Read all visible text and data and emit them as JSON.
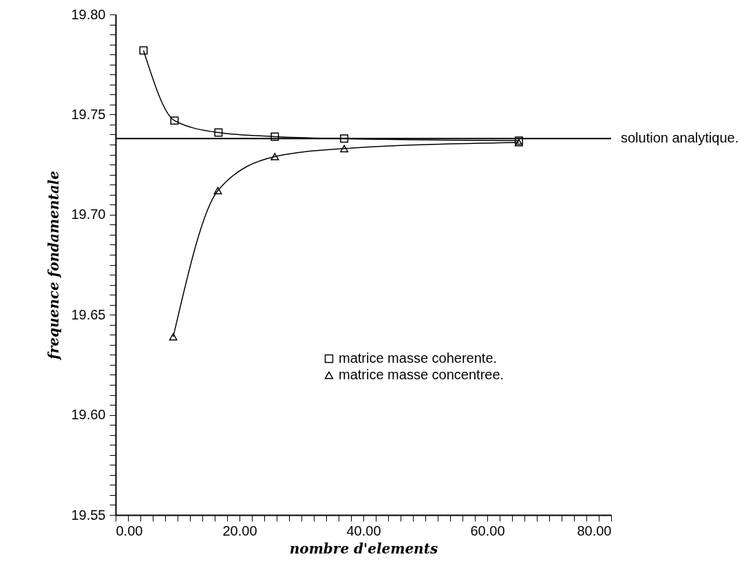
{
  "chart_data": {
    "type": "line",
    "xlabel": "nombre d'elements",
    "ylabel": "frequence fondamentale",
    "xlim": [
      0,
      80
    ],
    "ylim": [
      19.55,
      19.8
    ],
    "xticks": [
      {
        "value": 0,
        "label": "0.00"
      },
      {
        "value": 20,
        "label": "20.00"
      },
      {
        "value": 40,
        "label": "40.00"
      },
      {
        "value": 60,
        "label": "60.00"
      },
      {
        "value": 80,
        "label": "80.00"
      }
    ],
    "yticks": [
      {
        "value": 19.55,
        "label": "19.55"
      },
      {
        "value": 19.6,
        "label": "19.60"
      },
      {
        "value": 19.65,
        "label": "19.65"
      },
      {
        "value": 19.7,
        "label": "19.70"
      },
      {
        "value": 19.75,
        "label": "19.75"
      },
      {
        "value": 19.8,
        "label": "19.80"
      }
    ],
    "grid": false,
    "legend": "center",
    "line_style": "solid",
    "series": [
      {
        "name": "matrice masse coherente.",
        "color": "#000000",
        "marker": "square",
        "x": [
          4.5,
          9.5,
          16.6,
          25.7,
          36.9,
          65.1
        ],
        "values": [
          19.782,
          19.747,
          19.741,
          19.739,
          19.738,
          19.737
        ]
      },
      {
        "name": "matrice masse concentree.",
        "color": "#000000",
        "marker": "triangle",
        "x": [
          9.3,
          16.5,
          25.7,
          36.9,
          65.1
        ],
        "values": [
          19.639,
          19.712,
          19.729,
          19.733,
          19.736
        ]
      }
    ],
    "ref_lines": [
      {
        "axis": "y",
        "value": 19.738,
        "label": "solution analytique.",
        "color": "#000000"
      }
    ]
  }
}
